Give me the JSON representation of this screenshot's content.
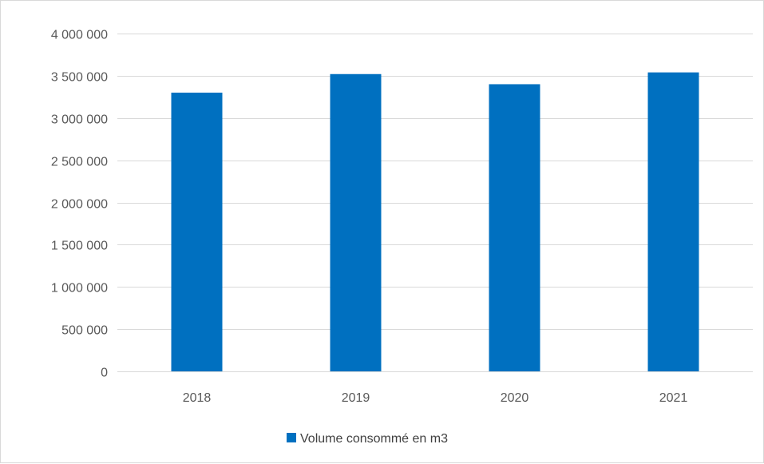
{
  "chart_data": {
    "type": "bar",
    "categories": [
      "2018",
      "2019",
      "2020",
      "2021"
    ],
    "series": [
      {
        "name": "Volume consommé en m3",
        "values": [
          3300000,
          3520000,
          3400000,
          3540000
        ],
        "color": "#0070C0"
      }
    ],
    "title": "",
    "xlabel": "",
    "ylabel": "",
    "ylim": [
      0,
      4000000
    ],
    "yticks": [
      0,
      500000,
      1000000,
      1500000,
      2000000,
      2500000,
      3000000,
      3500000,
      4000000
    ],
    "ytick_labels": [
      "0",
      "500 000",
      "1 000 000",
      "1 500 000",
      "2 000 000",
      "2 500 000",
      "3 000 000",
      "3 500 000",
      "4 000 000"
    ],
    "grid": true,
    "grid_color": "#d9d9d9",
    "legend_position": "bottom"
  }
}
